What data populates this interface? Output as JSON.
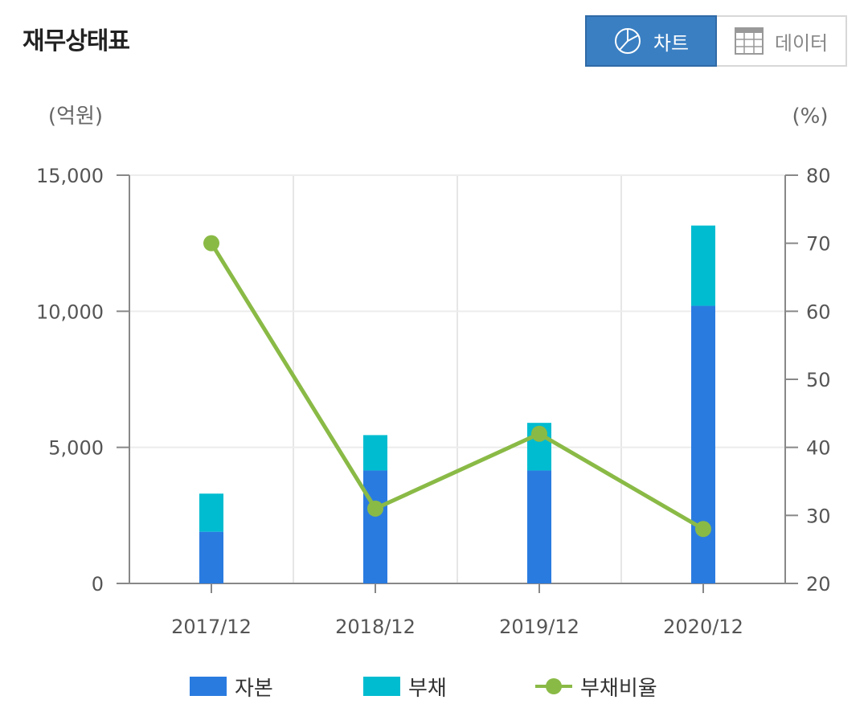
{
  "header": {
    "title": "재무상태표",
    "chart_button_label": "차트",
    "data_button_label": "데이터"
  },
  "axis_units": {
    "left": "(억원)",
    "right": "(%)"
  },
  "colors": {
    "equity": "#2a7be0",
    "liabilities": "#00bcd0",
    "debt_ratio": "#8aba46",
    "toggle_active": "#3a7fc2"
  },
  "chart_data": {
    "type": "bar",
    "stacked": true,
    "categories": [
      "2017/12",
      "2018/12",
      "2019/12",
      "2020/12"
    ],
    "series": [
      {
        "name": "자본",
        "kind": "bar",
        "axis": "left",
        "values": [
          1900,
          4150,
          4150,
          10200
        ]
      },
      {
        "name": "부채",
        "kind": "bar",
        "axis": "left",
        "values": [
          1400,
          1300,
          1750,
          2950
        ]
      },
      {
        "name": "부채비율",
        "kind": "line",
        "axis": "right",
        "values": [
          70,
          31,
          42,
          28
        ]
      }
    ],
    "y_left": {
      "ylim": [
        0,
        15000
      ],
      "ticks": [
        0,
        5000,
        10000,
        15000
      ],
      "tick_labels": [
        "0",
        "5,000",
        "10,000",
        "15,000"
      ]
    },
    "y_right": {
      "ylim": [
        20,
        80
      ],
      "ticks": [
        20,
        30,
        40,
        50,
        60,
        70,
        80
      ],
      "tick_labels": [
        "20",
        "30",
        "40",
        "50",
        "60",
        "70",
        "80"
      ]
    },
    "grid": true,
    "legend_position": "bottom"
  }
}
